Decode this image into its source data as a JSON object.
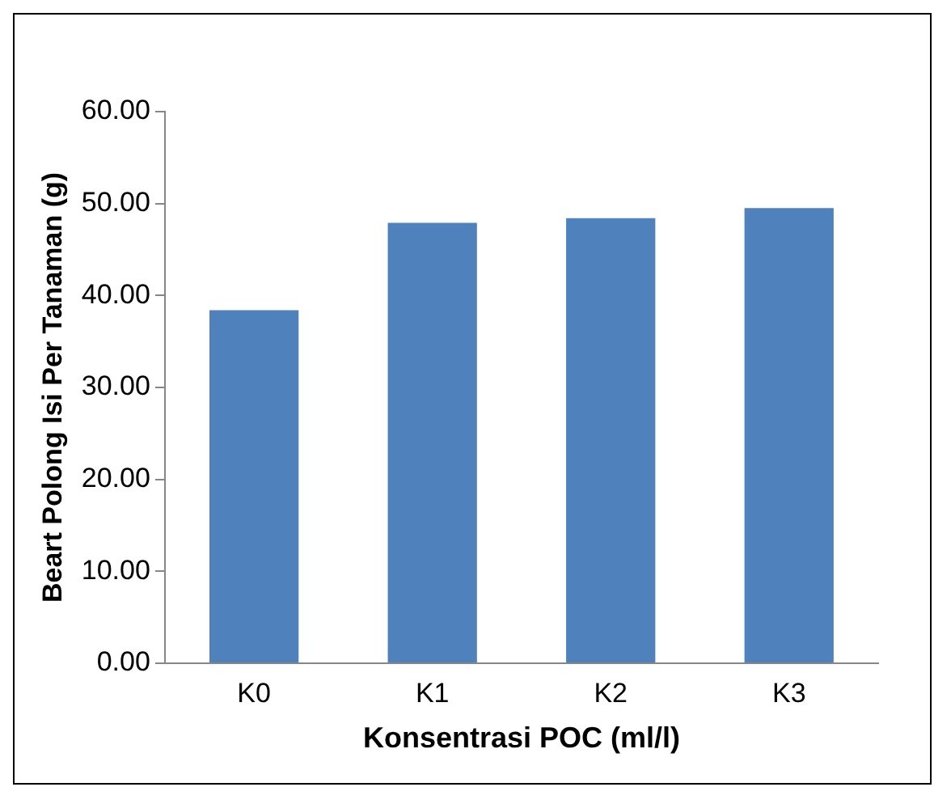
{
  "chart_data": {
    "type": "bar",
    "xlabel": "Konsentrasi POC (ml/l)",
    "ylabel": "Beart Polong Isi Per Tanaman (g)",
    "categories": [
      "K0",
      "K1",
      "K2",
      "K3"
    ],
    "values": [
      38.4,
      47.9,
      48.4,
      49.5
    ],
    "color": "#4f81bd",
    "ylim": [
      0,
      60
    ],
    "yticks": [
      {
        "value": 0,
        "label": "0.00"
      },
      {
        "value": 10,
        "label": "10.00"
      },
      {
        "value": 20,
        "label": "20.00"
      },
      {
        "value": 30,
        "label": "30.00"
      },
      {
        "value": 40,
        "label": "40.00"
      },
      {
        "value": 50,
        "label": "50.00"
      },
      {
        "value": 60,
        "label": "60.00"
      }
    ],
    "grid": false,
    "legend": false
  }
}
